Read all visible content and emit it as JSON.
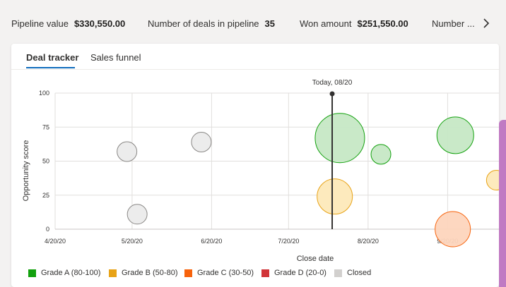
{
  "metrics": {
    "pipeline_label": "Pipeline value",
    "pipeline_value": "$330,550.00",
    "deals_label": "Number of deals in pipeline",
    "deals_value": "35",
    "won_label": "Won amount",
    "won_value": "$251,550.00",
    "more_label": "Number ...",
    "next_icon": "chevron-right-icon"
  },
  "tabs": [
    {
      "label": "Deal tracker",
      "active": true
    },
    {
      "label": "Sales funnel",
      "active": false
    }
  ],
  "chart_data": {
    "type": "scatter",
    "title": "",
    "xlabel": "Close date",
    "ylabel": "Opportunity score",
    "x_ticks": [
      "4/20/20",
      "5/20/20",
      "6/20/20",
      "7/20/20",
      "8/20/20",
      "9/20/20"
    ],
    "y_ticks": [
      "0",
      "25",
      "50",
      "75",
      "100"
    ],
    "xlim": [
      "2020-04-20",
      "2020-10-10"
    ],
    "ylim": [
      0,
      100
    ],
    "today_label": "Today, 08/20",
    "today_date": "2020-08-06",
    "series": [
      {
        "name": "Grade A (80-100)",
        "color": "#13a10e",
        "fill": "#c6e8c5",
        "points": [
          {
            "x": "2020-08-09",
            "y": 67,
            "size": 35
          },
          {
            "x": "2020-08-25",
            "y": 55,
            "size": 14
          },
          {
            "x": "2020-09-23",
            "y": 69,
            "size": 26
          }
        ]
      },
      {
        "name": "Grade B (50-80)",
        "color": "#e8a317",
        "fill": "#fde9b9",
        "points": [
          {
            "x": "2020-08-07",
            "y": 24,
            "size": 25
          },
          {
            "x": "2020-10-09",
            "y": 36,
            "size": 14
          }
        ]
      },
      {
        "name": "Grade C (30-50)",
        "color": "#f7630c",
        "fill": "#fdd5bd",
        "points": [
          {
            "x": "2020-09-22",
            "y": 0,
            "size": 25
          }
        ]
      },
      {
        "name": "Grade D (20-0)",
        "color": "#d13438",
        "fill": "#f4c3c4",
        "points": []
      },
      {
        "name": "Closed",
        "color": "#8a8886",
        "fill": "#ebebeb",
        "points": [
          {
            "x": "2020-05-18",
            "y": 57,
            "size": 14
          },
          {
            "x": "2020-05-22",
            "y": 11,
            "size": 14
          },
          {
            "x": "2020-06-16",
            "y": 64,
            "size": 14
          }
        ]
      }
    ],
    "legend_position": "bottom-left",
    "grid": true
  }
}
